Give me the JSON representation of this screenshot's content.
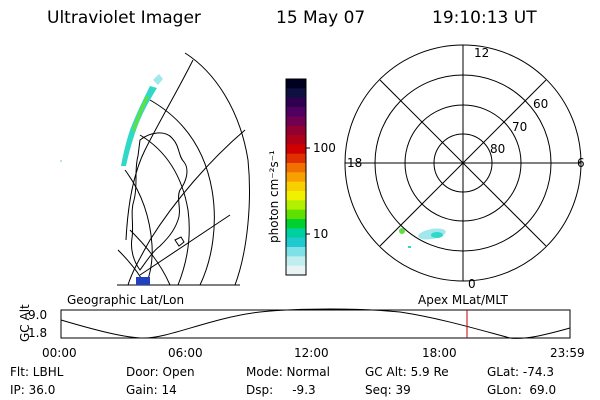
{
  "header": {
    "instrument": "Ultraviolet Imager",
    "date": "15 May 07",
    "time": "19:10:13 UT"
  },
  "colorbar": {
    "unit_label": "photon cm⁻²s⁻¹",
    "ticks": [
      "100",
      "10"
    ],
    "colors": [
      "#000020",
      "#101040",
      "#300050",
      "#500060",
      "#700050",
      "#900030",
      "#b00018",
      "#d00000",
      "#e03000",
      "#f07000",
      "#f8a000",
      "#f8d000",
      "#f0f000",
      "#b0f000",
      "#60e000",
      "#00d030",
      "#00d0a0",
      "#20c8d0",
      "#80e0e8",
      "#c0eef0",
      "#e8f4f4"
    ]
  },
  "polar_plot": {
    "hour_labels": [
      "12",
      "18",
      "6",
      "0"
    ],
    "lat_labels": [
      "60",
      "70",
      "80"
    ]
  },
  "timeline": {
    "y_axis_label": "GC Alt",
    "y_ticks": [
      "9.0",
      "1.8"
    ],
    "left_title": "Geographic Lat/Lon",
    "right_title": "Apex MLat/MLT",
    "x_ticks": [
      "00:00",
      "06:00",
      "12:00",
      "18:00",
      "23:59"
    ],
    "current_time_marker_color": "#c00000"
  },
  "status": {
    "flt": "Flt: LBHL",
    "door": "Door: Open",
    "mode": "Mode: Normal",
    "gc_alt": "GC Alt: 5.9 Re",
    "glat": "GLat: -74.3",
    "ip": "IP: 36.0",
    "gain": "Gain: 14",
    "dsp": "Dsp:     -9.3",
    "seq": "Seq: 39",
    "glon": "GLon:  69.0"
  }
}
